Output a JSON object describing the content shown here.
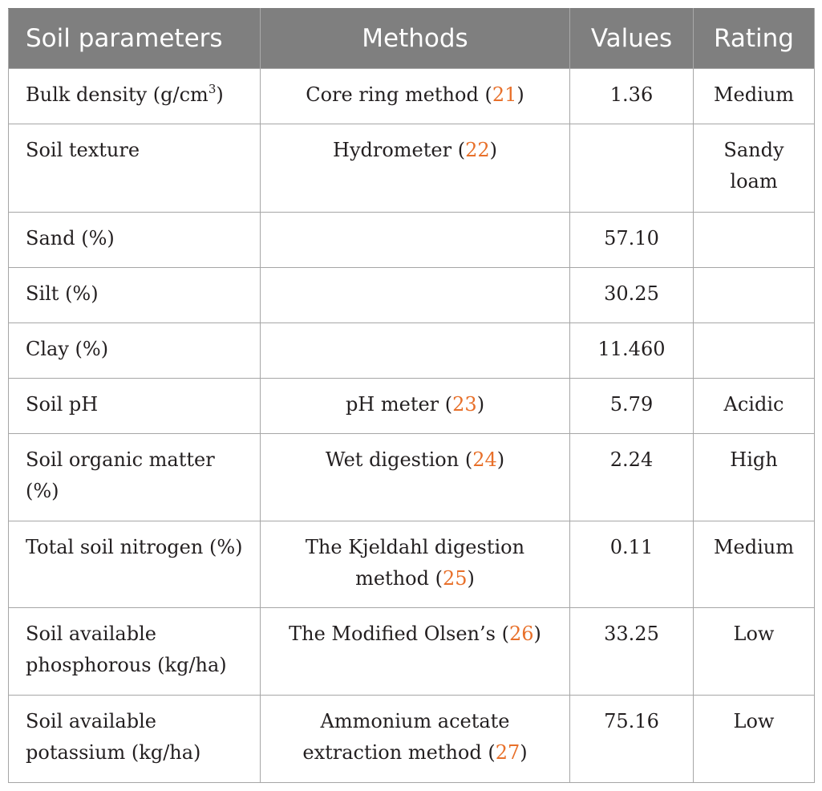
{
  "table": {
    "headers": [
      "Soil parameters",
      "Methods",
      "Values",
      "Rating"
    ],
    "rows": [
      {
        "parameter": "Bulk density (g/cm",
        "parameter_sup": "3",
        "parameter_suffix": ")",
        "method": "Core ring method (",
        "method_ref": "21",
        "method_close": ")",
        "value": "1.36",
        "rating": "Medium"
      },
      {
        "parameter": "Soil texture",
        "method": "Hydrometer (",
        "method_ref": "22",
        "method_close": ")",
        "value": "",
        "rating": "Sandy loam"
      },
      {
        "parameter": "Sand (%)",
        "method": "",
        "method_ref": "",
        "method_close": "",
        "value": "57.10",
        "rating": ""
      },
      {
        "parameter": "Silt (%)",
        "method": "",
        "method_ref": "",
        "method_close": "",
        "value": "30.25",
        "rating": ""
      },
      {
        "parameter": "Clay (%)",
        "method": "",
        "method_ref": "",
        "method_close": "",
        "value": "11.460",
        "rating": ""
      },
      {
        "parameter": "Soil pH",
        "method": "pH meter (",
        "method_ref": "23",
        "method_close": ")",
        "value": "5.79",
        "rating": "Acidic"
      },
      {
        "parameter": "Soil organic matter (%)",
        "method": "Wet digestion (",
        "method_ref": "24",
        "method_close": ")",
        "value": "2.24",
        "rating": "High"
      },
      {
        "parameter": "Total soil nitrogen (%)",
        "method": "The Kjeldahl digestion method (",
        "method_ref": "25",
        "method_close": ")",
        "value": "0.11",
        "rating": "Medium"
      },
      {
        "parameter": "Soil available phosphorous (kg/ha)",
        "method": "The Modified Olsen’s (",
        "method_ref": "26",
        "method_close": ")",
        "value": "33.25",
        "rating": "Low"
      },
      {
        "parameter": "Soil available potassium (kg/ha)",
        "method": "Ammonium acetate extraction method (",
        "method_ref": "27",
        "method_close": ")",
        "value": "75.16",
        "rating": "Low"
      }
    ]
  },
  "colors": {
    "header_bg": "#7f7f7f",
    "header_text": "#ffffff",
    "reference_link": "#e8702a",
    "grid": "#a6a6a6"
  }
}
